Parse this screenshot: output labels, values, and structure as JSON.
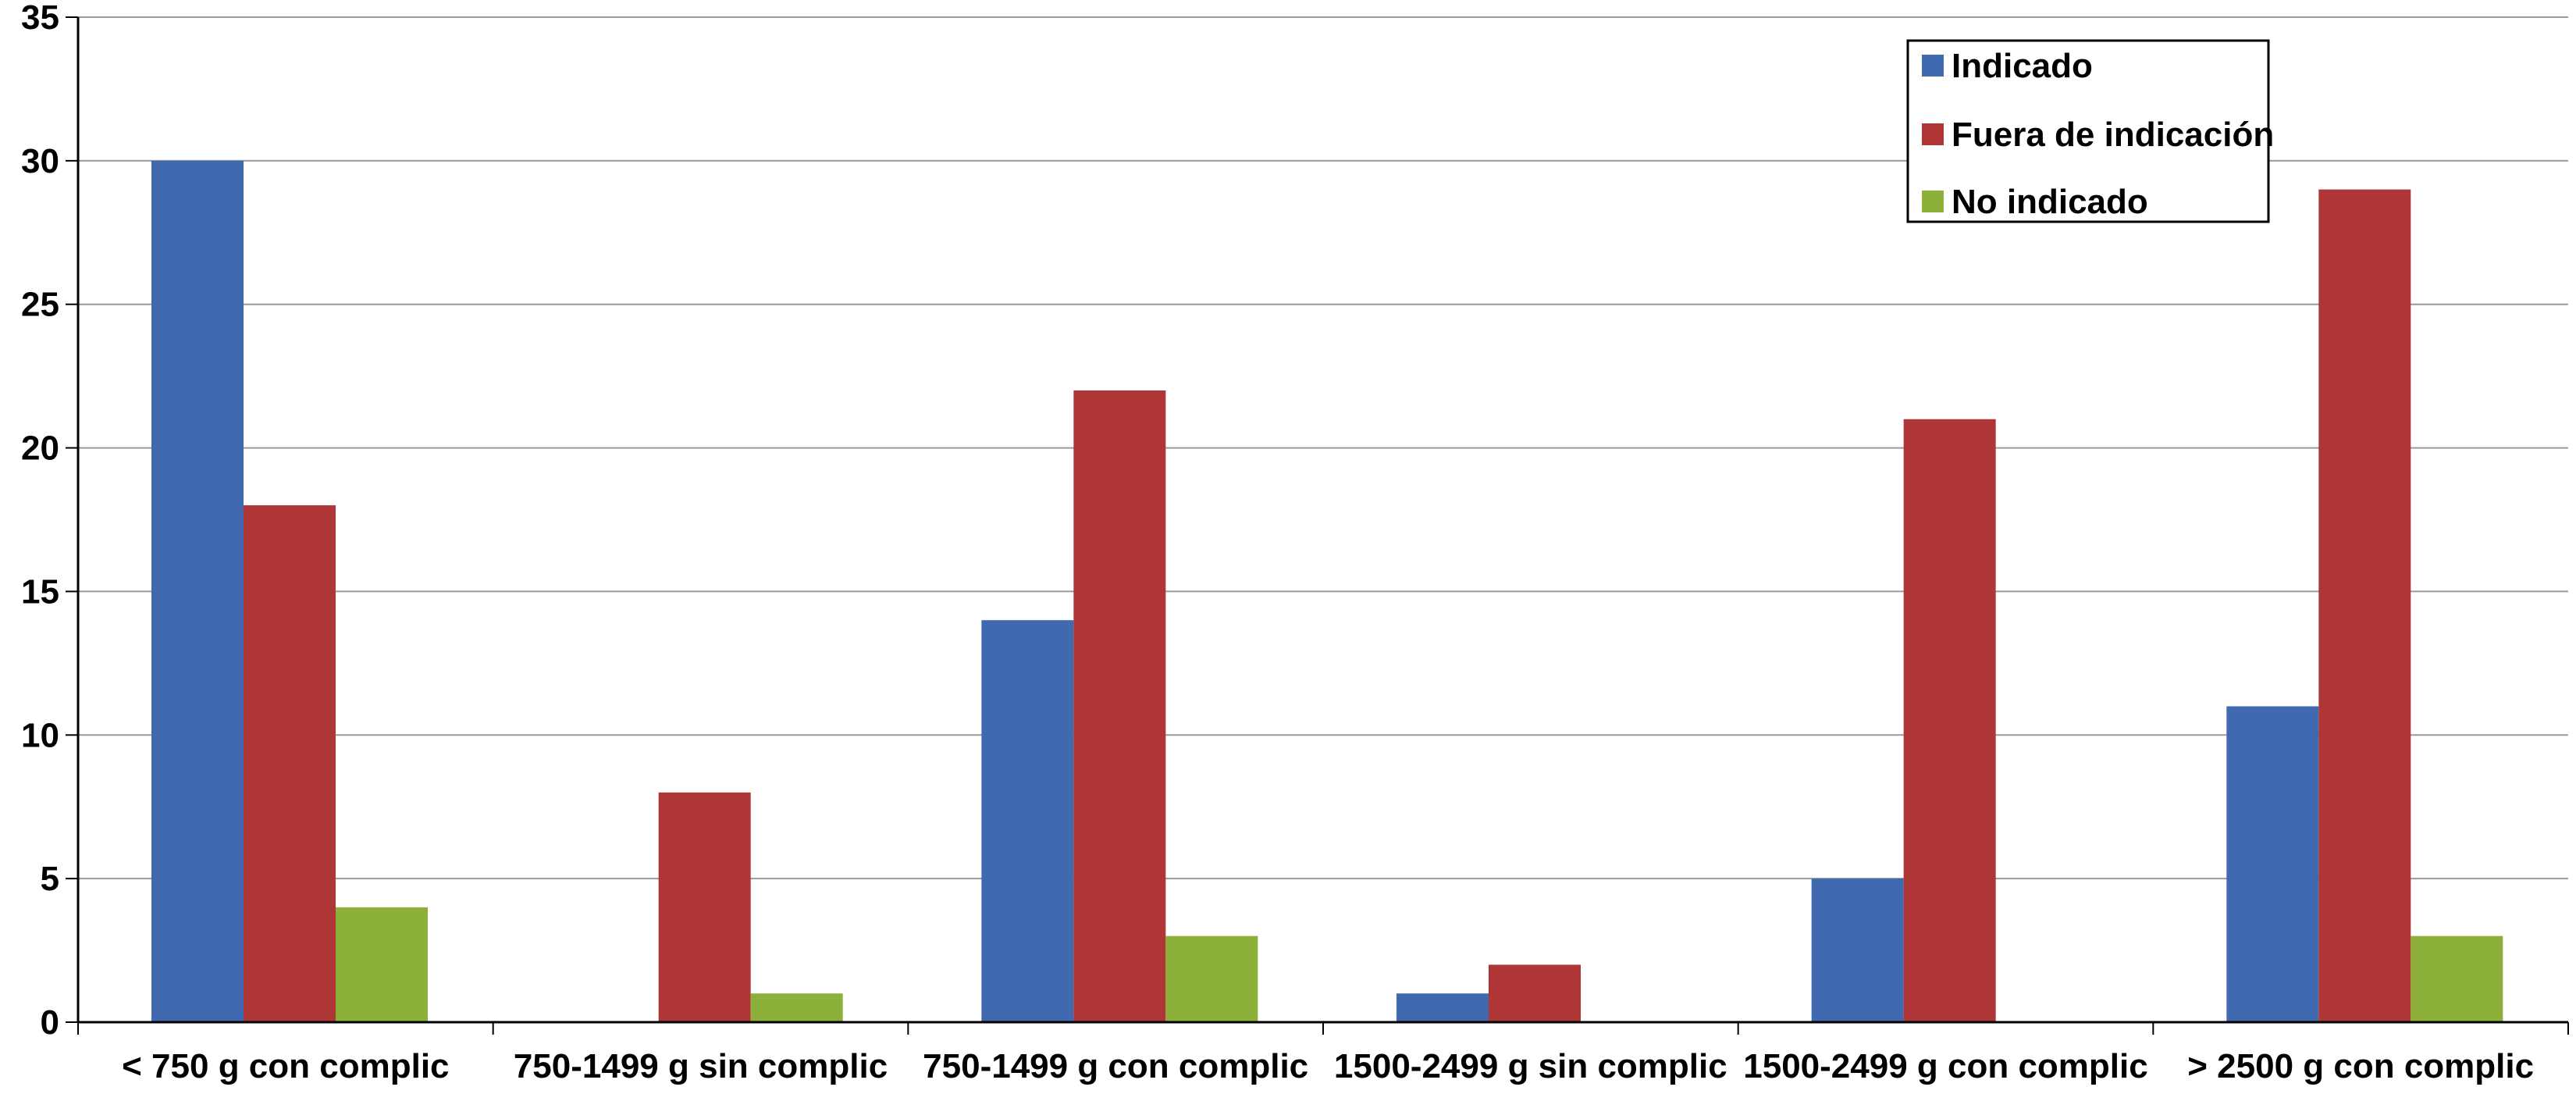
{
  "chart_data": {
    "type": "bar",
    "title": "",
    "xlabel": "",
    "ylabel": "",
    "categories": [
      "< 750 g con complic",
      "750-1499 g sin complic",
      "750-1499 g con complic",
      "1500-2499 g sin complic",
      "1500-2499 g con complic",
      "> 2500 g con complic"
    ],
    "series": [
      {
        "name": "Indicado",
        "color": "#4169B0",
        "values": [
          30,
          0,
          14,
          1,
          5,
          11
        ]
      },
      {
        "name": "Fuera de indicación",
        "color": "#AE3636",
        "values": [
          18,
          8,
          22,
          2,
          21,
          29
        ]
      },
      {
        "name": "No indicado",
        "color": "#8DB03A",
        "values": [
          4,
          1,
          3,
          0,
          0,
          3
        ]
      }
    ],
    "ylim": [
      0,
      35
    ],
    "yticks": [
      0,
      5,
      10,
      15,
      20,
      25,
      30,
      35
    ],
    "grid": true,
    "legend_position": "top-right"
  }
}
